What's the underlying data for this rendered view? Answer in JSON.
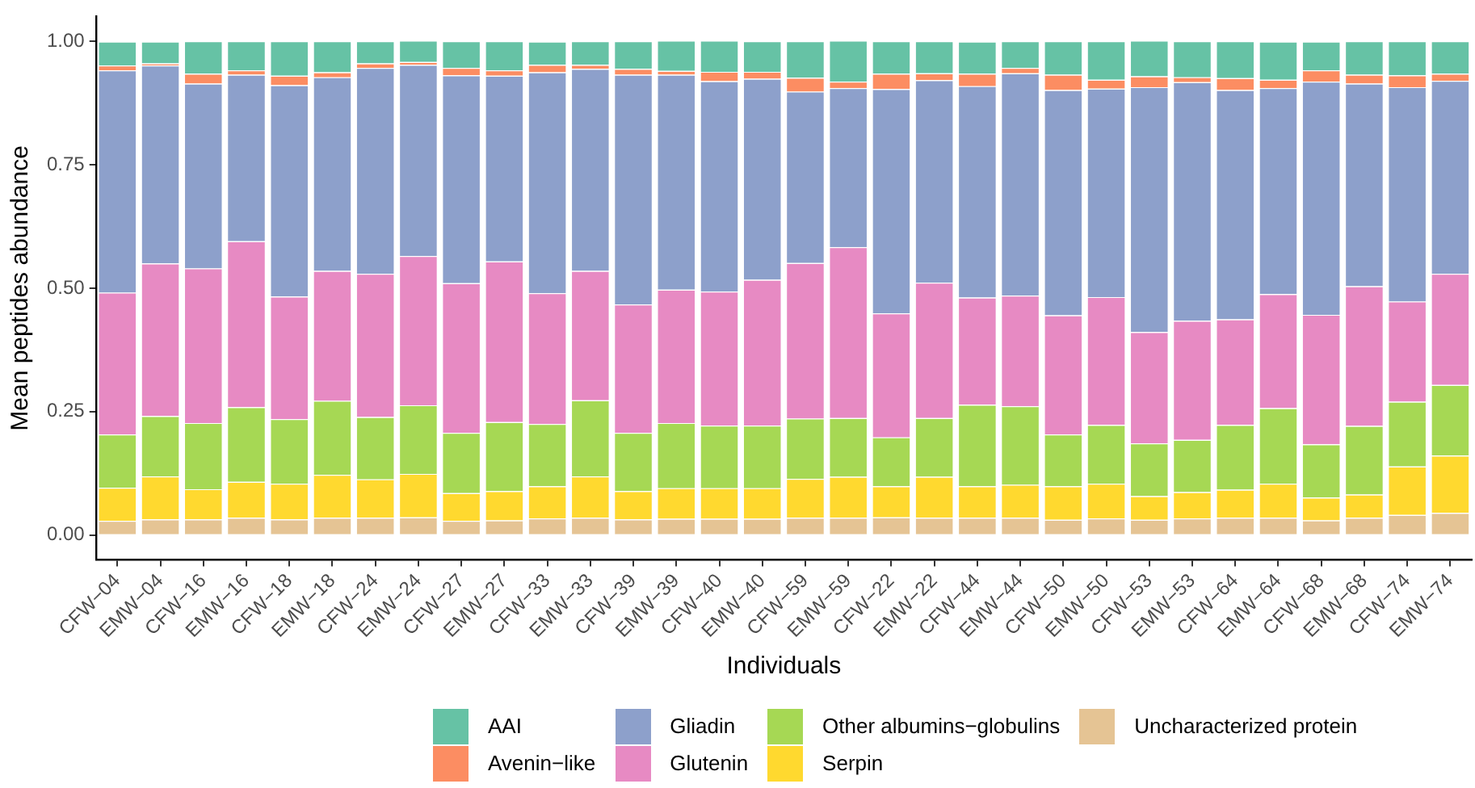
{
  "chart_data": {
    "type": "bar",
    "stacked": true,
    "xlabel": "Individuals",
    "ylabel": "Mean peptides abundance",
    "legend": "bottom",
    "categories": [
      "CFW−04",
      "EMW−04",
      "CFW−16",
      "EMW−16",
      "CFW−18",
      "EMW−18",
      "CFW−24",
      "EMW−24",
      "CFW−27",
      "EMW−27",
      "CFW−33",
      "EMW−33",
      "CFW−39",
      "EMW−39",
      "CFW−40",
      "EMW−40",
      "CFW−59",
      "EMW−59",
      "CFW−22",
      "EMW−22",
      "CFW−44",
      "EMW−44",
      "CFW−50",
      "EMW−50",
      "CFW−53",
      "EMW−53",
      "CFW−64",
      "EMW−64",
      "CFW−68",
      "EMW−68",
      "CFW−74",
      "EMW−74"
    ],
    "ylim": [
      -0.05,
      1.05
    ],
    "yticks": [
      {
        "value": 0,
        "label": "0.00"
      },
      {
        "value": 0.25,
        "label": "0.25"
      },
      {
        "value": 0.5,
        "label": "0.50"
      },
      {
        "value": 0.75,
        "label": "0.75"
      },
      {
        "value": 1,
        "label": "1.00"
      }
    ],
    "series": [
      {
        "name": "Uncharacterized protein",
        "color": "#e5c494",
        "values": [
          0.029,
          0.032,
          0.032,
          0.035,
          0.032,
          0.035,
          0.035,
          0.036,
          0.029,
          0.03,
          0.034,
          0.035,
          0.032,
          0.033,
          0.033,
          0.033,
          0.035,
          0.035,
          0.036,
          0.035,
          0.035,
          0.035,
          0.031,
          0.034,
          0.031,
          0.034,
          0.035,
          0.035,
          0.03,
          0.035,
          0.041,
          0.045
        ]
      },
      {
        "name": "Serpin",
        "color": "#ffd92f",
        "values": [
          0.067,
          0.087,
          0.061,
          0.073,
          0.072,
          0.087,
          0.078,
          0.088,
          0.056,
          0.059,
          0.065,
          0.084,
          0.057,
          0.062,
          0.062,
          0.062,
          0.079,
          0.083,
          0.063,
          0.083,
          0.064,
          0.067,
          0.068,
          0.07,
          0.048,
          0.053,
          0.057,
          0.069,
          0.046,
          0.047,
          0.098,
          0.116
        ]
      },
      {
        "name": "Other albumins−globulins",
        "color": "#a6d854",
        "values": [
          0.108,
          0.122,
          0.134,
          0.151,
          0.131,
          0.15,
          0.126,
          0.139,
          0.122,
          0.14,
          0.126,
          0.154,
          0.118,
          0.132,
          0.127,
          0.127,
          0.122,
          0.119,
          0.099,
          0.119,
          0.165,
          0.159,
          0.105,
          0.119,
          0.107,
          0.106,
          0.131,
          0.153,
          0.108,
          0.139,
          0.131,
          0.143
        ]
      },
      {
        "name": "Glutenin",
        "color": "#e78ac3",
        "values": [
          0.287,
          0.309,
          0.313,
          0.336,
          0.248,
          0.263,
          0.29,
          0.302,
          0.303,
          0.325,
          0.265,
          0.262,
          0.26,
          0.27,
          0.271,
          0.295,
          0.315,
          0.346,
          0.251,
          0.274,
          0.217,
          0.224,
          0.241,
          0.259,
          0.225,
          0.241,
          0.214,
          0.231,
          0.262,
          0.283,
          0.203,
          0.225
        ]
      },
      {
        "name": "Gliadin",
        "color": "#8da0cb",
        "values": [
          0.45,
          0.401,
          0.374,
          0.337,
          0.428,
          0.392,
          0.417,
          0.387,
          0.421,
          0.376,
          0.447,
          0.409,
          0.465,
          0.435,
          0.426,
          0.407,
          0.347,
          0.322,
          0.454,
          0.41,
          0.428,
          0.45,
          0.456,
          0.422,
          0.496,
          0.483,
          0.464,
          0.417,
          0.472,
          0.41,
          0.434,
          0.391
        ]
      },
      {
        "name": "Avenin−like",
        "color": "#fc8d62",
        "values": [
          0.01,
          0.004,
          0.02,
          0.009,
          0.019,
          0.01,
          0.009,
          0.006,
          0.015,
          0.011,
          0.015,
          0.008,
          0.012,
          0.008,
          0.019,
          0.014,
          0.028,
          0.013,
          0.031,
          0.014,
          0.025,
          0.011,
          0.031,
          0.018,
          0.022,
          0.01,
          0.024,
          0.017,
          0.023,
          0.018,
          0.024,
          0.014
        ]
      },
      {
        "name": "AAI",
        "color": "#66c2a5",
        "values": [
          0.048,
          0.044,
          0.066,
          0.059,
          0.07,
          0.063,
          0.045,
          0.043,
          0.054,
          0.059,
          0.047,
          0.048,
          0.056,
          0.061,
          0.063,
          0.062,
          0.074,
          0.083,
          0.066,
          0.065,
          0.065,
          0.054,
          0.068,
          0.078,
          0.072,
          0.073,
          0.075,
          0.077,
          0.058,
          0.068,
          0.069,
          0.066
        ]
      }
    ]
  }
}
